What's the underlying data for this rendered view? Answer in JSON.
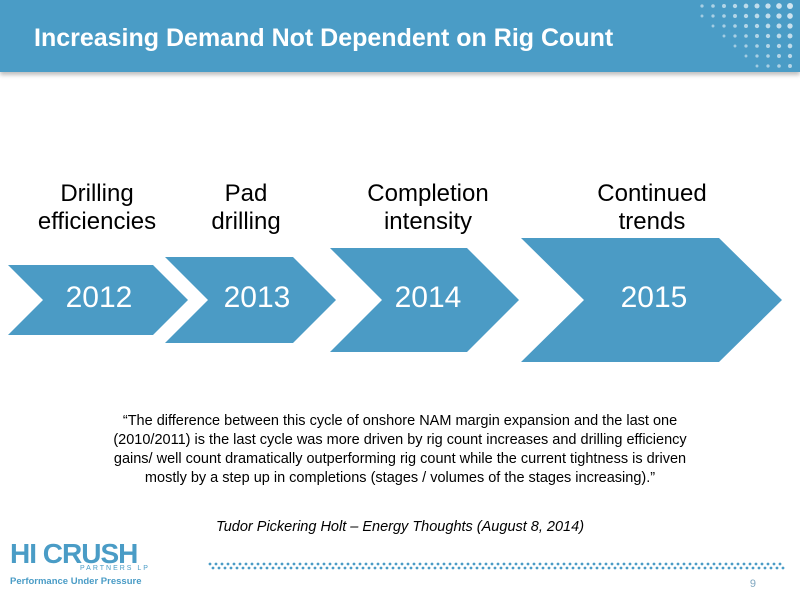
{
  "slide": {
    "title": "Increasing Demand Not Dependent on Rig Count",
    "page_number": "9"
  },
  "colors": {
    "accent": "#4a9cc6",
    "arrow_fill": "#4b9bc5",
    "text": "#000000"
  },
  "timeline": [
    {
      "year": "2012",
      "label_line1": "Drilling",
      "label_line2": "efficiencies"
    },
    {
      "year": "2013",
      "label_line1": "Pad",
      "label_line2": "drilling"
    },
    {
      "year": "2014",
      "label_line1": "Completion",
      "label_line2": "intensity"
    },
    {
      "year": "2015",
      "label_line1": "Continued",
      "label_line2": "trends"
    }
  ],
  "quote": {
    "text": "“The difference between this cycle of onshore NAM margin expansion and the last one (2010/2011) is the last cycle was more driven by rig count increases and drilling efficiency gains/ well count dramatically outperforming rig count while the current tightness is driven mostly by a step up in completions (stages / volumes of the stages increasing).”",
    "source": "Tudor Pickering Holt – Energy Thoughts (August 8, 2014)"
  },
  "logo": {
    "main": "HI CRUSH",
    "sub": "PARTNERS LP",
    "tagline": "Performance Under Pressure"
  }
}
